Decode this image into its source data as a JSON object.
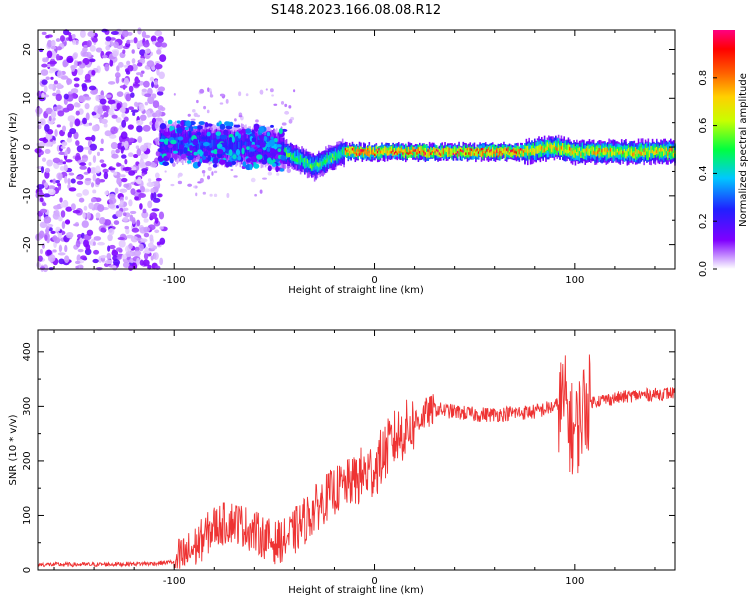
{
  "title": "S148.2023.166.08.08.R12",
  "chart_data": [
    {
      "type": "heatmap",
      "name": "spectrogram",
      "xlabel": "Height of straight line (km)",
      "ylabel": "Frequency (Hz)",
      "xlim": [
        -168,
        150
      ],
      "ylim": [
        -25,
        24
      ],
      "xticks": [
        -100,
        0,
        100
      ],
      "yticks": [
        -20,
        -10,
        0,
        10,
        20
      ],
      "colorbar": {
        "label": "Normalized spectral amplitude",
        "range": [
          0,
          1
        ],
        "ticks": [
          0.0,
          0.2,
          0.4,
          0.6,
          0.8
        ]
      },
      "ridge": {
        "description_points_x": [
          -108,
          -50,
          -40,
          -30,
          -20,
          -15,
          0,
          10,
          75,
          90,
          100,
          150
        ],
        "description_points_f": [
          1,
          0,
          -2,
          -4,
          -2,
          -1,
          -1,
          -1,
          -1,
          0,
          -1,
          -1
        ]
      }
    },
    {
      "type": "line",
      "name": "snr",
      "xlabel": "Height of straight line (km)",
      "ylabel": "SNR (10 * v/v)",
      "xlim": [
        -168,
        150
      ],
      "ylim": [
        0,
        440
      ],
      "xticks": [
        -100,
        0,
        100
      ],
      "yticks": [
        0,
        100,
        200,
        300,
        400
      ],
      "color": "#ee3333",
      "x": [
        -168,
        -140,
        -110,
        -100,
        -95,
        -90,
        -85,
        -80,
        -75,
        -70,
        -65,
        -60,
        -55,
        -50,
        -45,
        -40,
        -35,
        -30,
        -25,
        -20,
        -15,
        -10,
        -5,
        0,
        5,
        10,
        15,
        20,
        25,
        30,
        40,
        50,
        60,
        70,
        80,
        90,
        95,
        98,
        100,
        102,
        105,
        110,
        120,
        130,
        140,
        150
      ],
      "y": [
        10,
        10,
        12,
        15,
        25,
        40,
        60,
        80,
        85,
        90,
        80,
        70,
        60,
        50,
        55,
        70,
        90,
        110,
        130,
        145,
        155,
        165,
        175,
        185,
        215,
        240,
        255,
        270,
        285,
        295,
        290,
        285,
        285,
        288,
        290,
        300,
        310,
        260,
        250,
        270,
        305,
        310,
        315,
        320,
        322,
        325
      ]
    }
  ]
}
